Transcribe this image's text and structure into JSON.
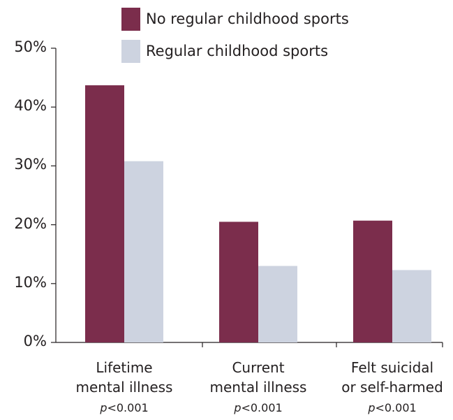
{
  "chart_data": {
    "type": "bar",
    "categories": [
      [
        "Lifetime",
        "mental illness"
      ],
      [
        "Current",
        "mental illness"
      ],
      [
        "Felt suicidal",
        "or self-harmed"
      ]
    ],
    "annotations": [
      {
        "italic": "p",
        "text": "<0.001"
      },
      {
        "italic": "p",
        "text": "<0.001"
      },
      {
        "italic": "p",
        "text": "<0.001"
      }
    ],
    "series": [
      {
        "name": "No regular childhood sports",
        "color": "#7b2d4c",
        "values": [
          43.7,
          20.5,
          20.7
        ]
      },
      {
        "name": "Regular childhood sports",
        "color": "#cdd3e0",
        "values": [
          30.8,
          13.0,
          12.3
        ]
      }
    ],
    "yticks": [
      "0%",
      "10%",
      "20%",
      "30%",
      "40%",
      "50%"
    ],
    "ylim": [
      0,
      50
    ],
    "grid": false,
    "legend_position": "top"
  }
}
